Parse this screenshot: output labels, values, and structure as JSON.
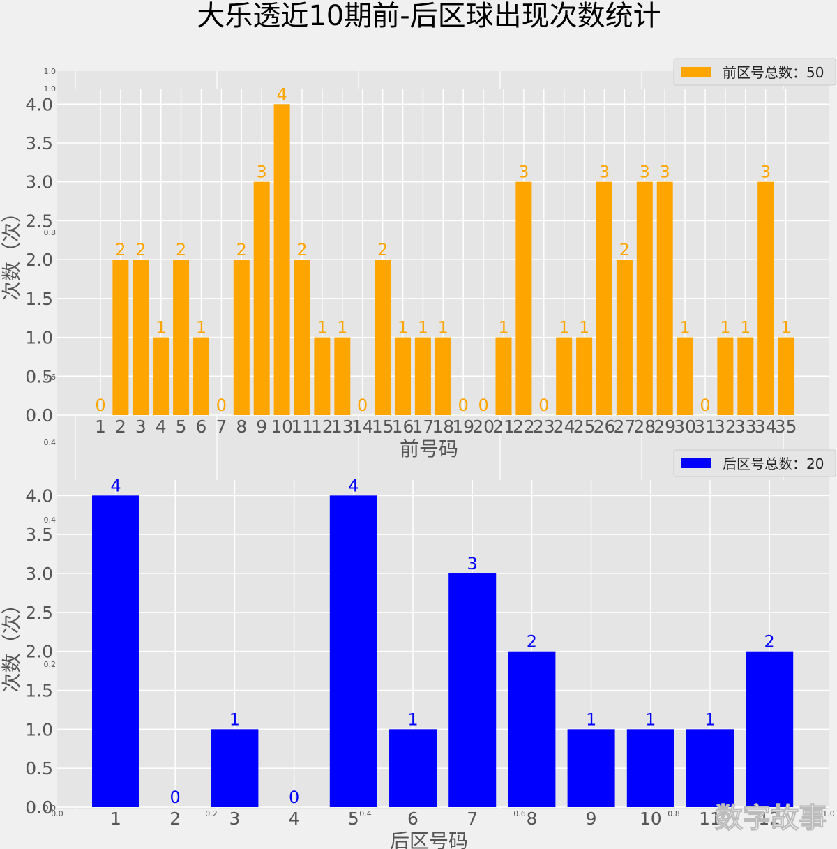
{
  "title": "大乐透近10期前-后区球出现次数统计",
  "watermark": "数字故事",
  "colors": {
    "front": "#FFA500",
    "back": "#0000FF",
    "panel": "#E5E5E5",
    "figure": "#F0F0F0",
    "grid": "#FFFFFF",
    "text": "#555555"
  },
  "background_axis": {
    "left_ticks": [
      "1.0",
      "1.0",
      "0.8",
      "0.6",
      "0.4",
      "0.4",
      "0.2",
      "0.0"
    ],
    "bottom_ticks": [
      "0.0",
      "0.2",
      "0.4",
      "0.6",
      "0.8",
      "1.0"
    ]
  },
  "chart_data": [
    {
      "type": "bar",
      "series": [
        {
          "name": "前区号总数：50",
          "values": [
            0,
            2,
            2,
            1,
            2,
            1,
            0,
            2,
            3,
            4,
            2,
            1,
            1,
            0,
            2,
            1,
            1,
            1,
            0,
            0,
            1,
            3,
            0,
            1,
            1,
            3,
            2,
            3,
            3,
            1,
            0,
            1,
            1,
            3,
            1
          ]
        }
      ],
      "categories": [
        "1",
        "2",
        "3",
        "4",
        "5",
        "6",
        "7",
        "8",
        "9",
        "10",
        "11",
        "12",
        "13",
        "14",
        "15",
        "16",
        "17",
        "18",
        "19",
        "20",
        "21",
        "22",
        "23",
        "24",
        "25",
        "26",
        "27",
        "28",
        "29",
        "30",
        "31",
        "32",
        "33",
        "34",
        "35"
      ],
      "xlabel": "前号码",
      "ylabel": "次数（次）",
      "ylim": [
        0,
        4.2
      ],
      "yticks": [
        "0.0",
        "0.5",
        "1.0",
        "1.5",
        "2.0",
        "2.5",
        "3.0",
        "3.5",
        "4.0"
      ],
      "grid": true,
      "legend": "top-right",
      "data_labels": true
    },
    {
      "type": "bar",
      "series": [
        {
          "name": "后区号总数：20",
          "values": [
            4,
            0,
            1,
            0,
            4,
            1,
            3,
            2,
            1,
            1,
            1,
            2
          ]
        }
      ],
      "categories": [
        "1",
        "2",
        "3",
        "4",
        "5",
        "6",
        "7",
        "8",
        "9",
        "10",
        "11",
        "12"
      ],
      "xlabel": "后区号码",
      "ylabel": "次数（次）",
      "ylim": [
        0,
        4.2
      ],
      "yticks": [
        "0.0",
        "0.5",
        "1.0",
        "1.5",
        "2.0",
        "2.5",
        "3.0",
        "3.5",
        "4.0"
      ],
      "grid": true,
      "legend": "top-right",
      "data_labels": true
    }
  ]
}
